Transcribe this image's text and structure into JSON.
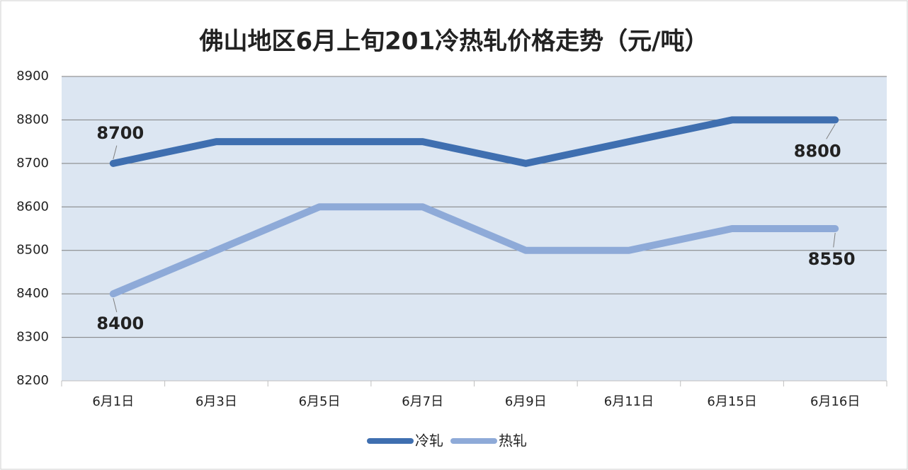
{
  "chart_data": {
    "type": "line",
    "title": "佛山地区6月上旬201冷热轧价格走势（元/吨）",
    "categories": [
      "6月1日",
      "6月3日",
      "6月5日",
      "6月7日",
      "6月9日",
      "6月11日",
      "6月15日",
      "6月16日"
    ],
    "series": [
      {
        "name": "冷轧",
        "color": "#3f6fb0",
        "values": [
          8700,
          8750,
          8750,
          8750,
          8700,
          8750,
          8800,
          8800
        ]
      },
      {
        "name": "热轧",
        "color": "#8eaad8",
        "values": [
          8400,
          8500,
          8600,
          8600,
          8500,
          8500,
          8550,
          8550
        ]
      }
    ],
    "ylim": [
      8200,
      8900
    ],
    "yticks": [
      8200,
      8300,
      8400,
      8500,
      8600,
      8700,
      8800,
      8900
    ],
    "grid": true,
    "label_ends": true,
    "legend": "bottom"
  }
}
